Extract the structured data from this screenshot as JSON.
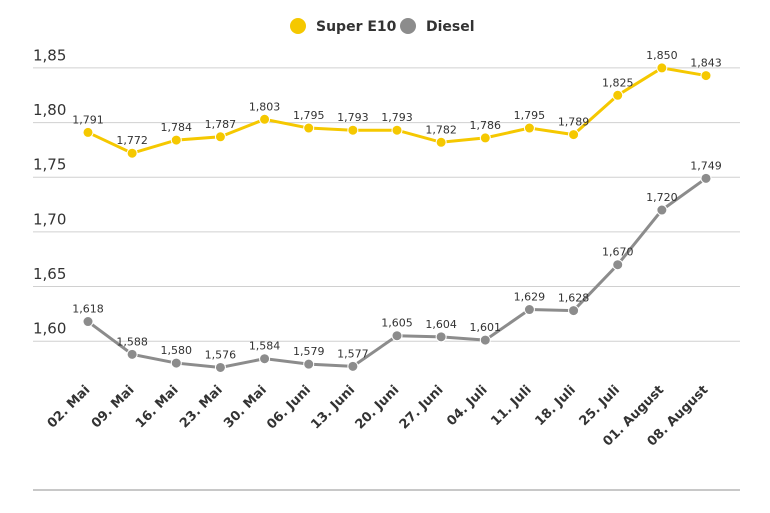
{
  "chart_data": {
    "type": "line",
    "categories": [
      "02. Mai",
      "09. Mai",
      "16. Mai",
      "23. Mai",
      "30. Mai",
      "06. Juni",
      "13. Juni",
      "20. Juni",
      "27. Juni",
      "04. Juli",
      "11. Juli",
      "18. Juli",
      "25. Juli",
      "01. August",
      "08. August"
    ],
    "series": [
      {
        "name": "Super E10",
        "color": "#f5c800",
        "values": [
          1.791,
          1.772,
          1.784,
          1.787,
          1.803,
          1.795,
          1.793,
          1.793,
          1.782,
          1.786,
          1.795,
          1.789,
          1.825,
          1.85,
          1.843
        ],
        "value_labels": [
          "1,791",
          "1,772",
          "1,784",
          "1,787",
          "1,803",
          "1,795",
          "1,793",
          "1,793",
          "1,782",
          "1,786",
          "1,795",
          "1,789",
          "1,825",
          "1,850",
          "1,843"
        ]
      },
      {
        "name": "Diesel",
        "color": "#8c8c8c",
        "values": [
          1.618,
          1.588,
          1.58,
          1.576,
          1.584,
          1.579,
          1.577,
          1.605,
          1.604,
          1.601,
          1.629,
          1.628,
          1.67,
          1.72,
          1.749
        ],
        "value_labels": [
          "1,618",
          "1,588",
          "1,580",
          "1,576",
          "1,584",
          "1,579",
          "1,577",
          "1,605",
          "1,604",
          "1,601",
          "1,629",
          "1,628",
          "1,670",
          "1,720",
          "1,749"
        ]
      }
    ],
    "ylim": [
      1.57,
      1.86
    ],
    "yticks": [
      {
        "value": 1.6,
        "label": "1,60"
      },
      {
        "value": 1.65,
        "label": "1,65"
      },
      {
        "value": 1.7,
        "label": "1,70"
      },
      {
        "value": 1.75,
        "label": "1,75"
      },
      {
        "value": 1.8,
        "label": "1,80"
      },
      {
        "value": 1.85,
        "label": "1,85"
      }
    ],
    "grid": true,
    "legend": "top"
  }
}
